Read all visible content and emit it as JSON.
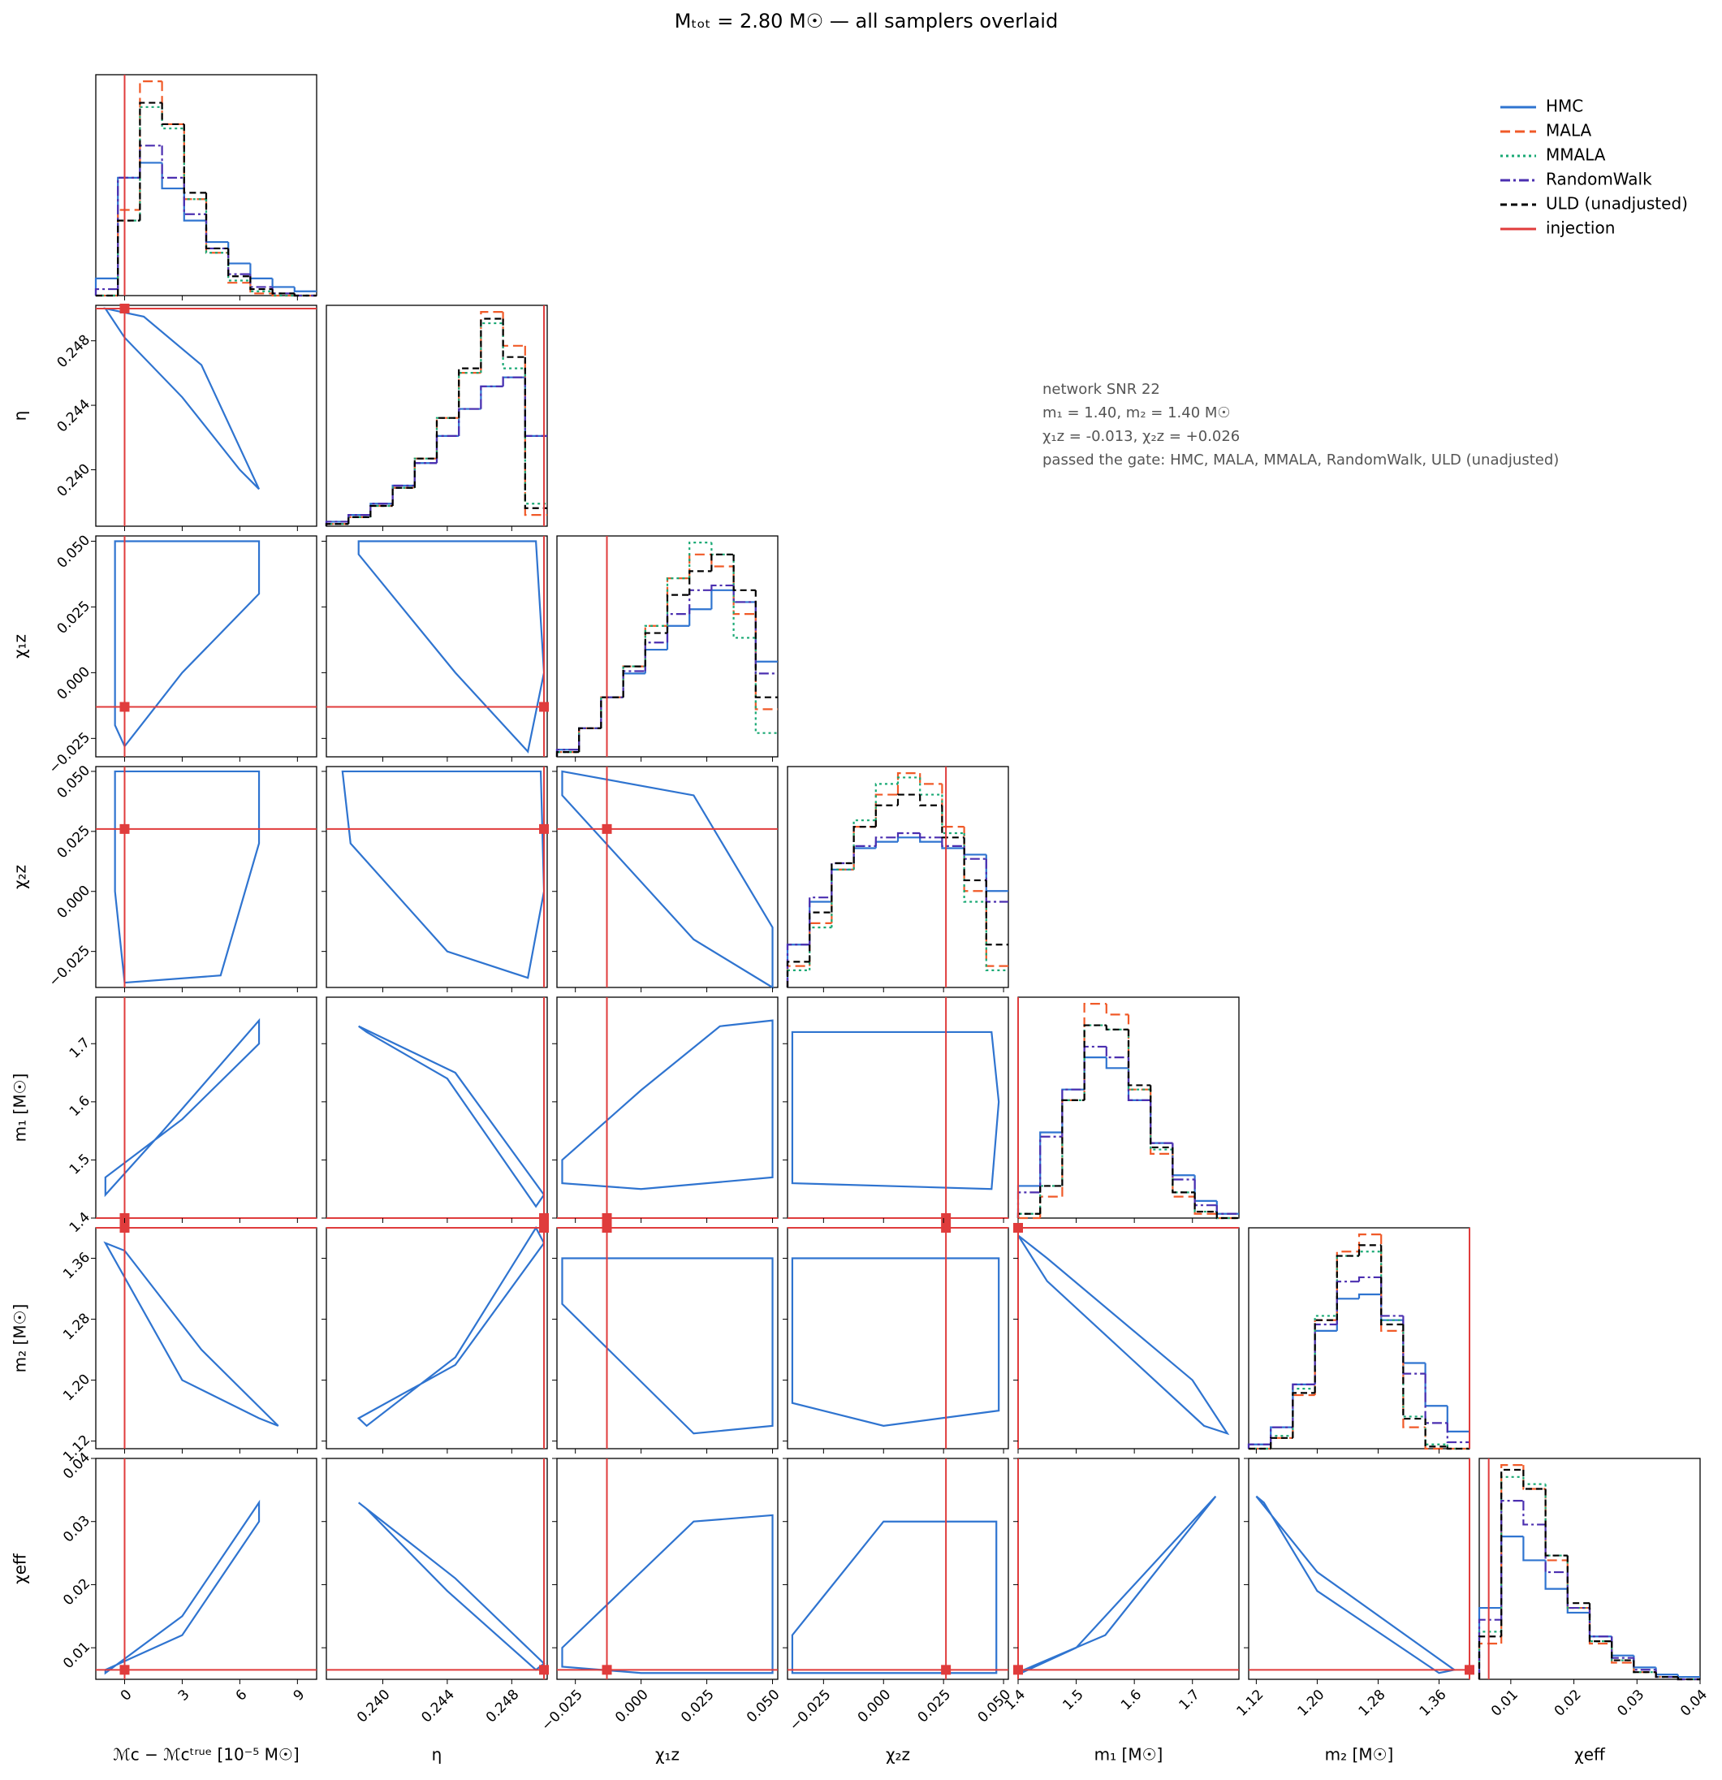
{
  "chart_data": {
    "type": "corner",
    "title": "Mₜₒₜ = 2.80 M☉ — all samplers overlaid",
    "annotations": [
      "network SNR 22",
      "m₁ = 1.40, m₂ = 1.40 M☉",
      "χ₁z = -0.013, χ₂z = +0.026",
      "passed the gate: HMC, MALA, MMALA, RandomWalk, ULD (unadjusted)"
    ],
    "series": [
      {
        "name": "HMC",
        "color": "#2f74d0",
        "dash": "none"
      },
      {
        "name": "MALA",
        "color": "#f05a28",
        "dash": "12 6"
      },
      {
        "name": "MMALA",
        "color": "#19a974",
        "dash": "3 4"
      },
      {
        "name": "RandomWalk",
        "color": "#4b2fb0",
        "dash": "12 4 3 4"
      },
      {
        "name": "ULD (unadjusted)",
        "color": "#000000",
        "dash": "8 5"
      }
    ],
    "injection": {
      "name": "injection",
      "color": "#e03c3c"
    },
    "params": [
      {
        "label": "ℳc − ℳcᵗʳᵘᵉ  [10⁻⁵ M☉]",
        "lim": [
          -1.5,
          10
        ],
        "ticks": [
          0,
          3,
          6,
          9
        ],
        "injection": 0,
        "hist": [
          [
            8,
            55,
            62,
            50,
            35,
            25,
            15,
            8,
            4,
            2
          ],
          [
            0,
            40,
            100,
            80,
            45,
            20,
            6,
            1,
            0,
            0
          ],
          [
            0,
            35,
            88,
            78,
            45,
            20,
            7,
            2,
            0,
            0
          ],
          [
            3,
            55,
            70,
            55,
            38,
            22,
            10,
            4,
            1,
            0
          ],
          [
            0,
            35,
            90,
            80,
            48,
            22,
            9,
            3,
            1,
            0
          ]
        ]
      },
      {
        "label": "η",
        "lim": [
          0.2365,
          0.2502
        ],
        "ticks": [
          {
            "value": 0.24,
            "label": "0.240"
          },
          {
            "value": 0.244,
            "label": "0.244"
          },
          {
            "value": 0.248,
            "label": "0.248"
          }
        ],
        "injection": 0.25,
        "hist": [
          [
            2,
            5,
            10,
            18,
            28,
            40,
            52,
            62,
            66,
            40
          ],
          [
            1,
            4,
            9,
            17,
            30,
            48,
            68,
            95,
            80,
            5
          ],
          [
            1,
            4,
            9,
            17,
            30,
            48,
            68,
            90,
            70,
            10
          ],
          [
            2,
            5,
            10,
            18,
            28,
            40,
            52,
            62,
            66,
            40
          ],
          [
            1,
            4,
            9,
            17,
            30,
            48,
            70,
            92,
            75,
            8
          ]
        ]
      },
      {
        "label": "χ₁z",
        "lim": [
          -0.032,
          0.052
        ],
        "ticks": [
          {
            "value": -0.025,
            "label": "−0.025"
          },
          {
            "value": 0,
            "label": "0.000"
          },
          {
            "value": 0.025,
            "label": "0.025"
          },
          {
            "value": 0.05,
            "label": "0.050"
          }
        ],
        "injection": -0.013,
        "hist": [
          [
            3,
            12,
            25,
            35,
            45,
            55,
            62,
            70,
            65,
            40
          ],
          [
            2,
            12,
            25,
            38,
            55,
            75,
            85,
            80,
            60,
            20
          ],
          [
            2,
            12,
            25,
            38,
            55,
            75,
            90,
            85,
            50,
            10
          ],
          [
            3,
            12,
            25,
            36,
            48,
            60,
            70,
            72,
            65,
            35
          ],
          [
            2,
            12,
            25,
            38,
            52,
            68,
            78,
            85,
            70,
            25
          ]
        ]
      },
      {
        "label": "χ₂z",
        "lim": [
          -0.04,
          0.052
        ],
        "ticks": [
          {
            "value": -0.025,
            "label": "−0.025"
          },
          {
            "value": 0,
            "label": "0.000"
          },
          {
            "value": 0.025,
            "label": "0.025"
          },
          {
            "value": 0.05,
            "label": "0.050"
          }
        ],
        "injection": 0.026,
        "hist": [
          [
            20,
            40,
            55,
            65,
            68,
            70,
            68,
            65,
            62,
            45
          ],
          [
            10,
            30,
            55,
            75,
            90,
            100,
            95,
            75,
            45,
            10
          ],
          [
            8,
            28,
            55,
            78,
            95,
            98,
            90,
            72,
            40,
            8
          ],
          [
            20,
            42,
            58,
            66,
            70,
            72,
            70,
            66,
            60,
            40
          ],
          [
            12,
            35,
            58,
            75,
            85,
            90,
            85,
            70,
            50,
            20
          ]
        ]
      },
      {
        "label": "m₁  [M☉]",
        "lim": [
          1.4,
          1.78
        ],
        "ticks": [
          1.4,
          1.5,
          1.6,
          1.7
        ],
        "injection": 1.4,
        "hist": [
          [
            15,
            40,
            60,
            75,
            70,
            55,
            35,
            20,
            8,
            2
          ],
          [
            0,
            10,
            55,
            100,
            95,
            60,
            30,
            10,
            2,
            0
          ],
          [
            2,
            15,
            55,
            90,
            88,
            60,
            32,
            12,
            3,
            0
          ],
          [
            12,
            38,
            60,
            80,
            75,
            55,
            35,
            18,
            6,
            2
          ],
          [
            2,
            15,
            55,
            90,
            88,
            62,
            33,
            12,
            3,
            0
          ]
        ]
      },
      {
        "label": "m₂  [M☉]",
        "lim": [
          1.11,
          1.4
        ],
        "ticks": [
          1.12,
          {
            "value": 1.2,
            "label": "1.20"
          },
          1.28,
          1.36
        ],
        "injection": 1.4,
        "hist": [
          [
            2,
            10,
            30,
            55,
            70,
            72,
            60,
            40,
            20,
            8
          ],
          [
            0,
            5,
            25,
            60,
            92,
            100,
            55,
            10,
            0,
            0
          ],
          [
            0,
            6,
            28,
            62,
            90,
            92,
            60,
            15,
            2,
            0
          ],
          [
            2,
            10,
            30,
            58,
            78,
            80,
            62,
            35,
            12,
            3
          ],
          [
            0,
            5,
            26,
            60,
            90,
            95,
            58,
            14,
            1,
            0
          ]
        ]
      },
      {
        "label": "χeff",
        "lim": [
          0.005,
          0.04
        ],
        "ticks": [
          0.01,
          0.02,
          0.03,
          0.04
        ],
        "injection": 0.0065,
        "hist": [
          [
            30,
            60,
            50,
            38,
            28,
            18,
            10,
            5,
            2,
            1
          ],
          [
            15,
            90,
            80,
            50,
            30,
            15,
            7,
            3,
            1,
            0
          ],
          [
            20,
            85,
            82,
            52,
            30,
            16,
            8,
            3,
            1,
            0
          ],
          [
            25,
            75,
            65,
            45,
            30,
            18,
            9,
            4,
            1,
            0
          ],
          [
            18,
            88,
            80,
            52,
            32,
            16,
            8,
            3,
            1,
            0
          ]
        ]
      }
    ],
    "contours": [
      {
        "x": [
          -1,
          1,
          4,
          7,
          6,
          3,
          0
        ],
        "y": [
          0.25,
          0.2495,
          0.2465,
          0.2388,
          0.24,
          0.2445,
          0.2482
        ]
      },
      {
        "x": [
          -0.5,
          7,
          7,
          3,
          0,
          -0.5
        ],
        "y": [
          0.05,
          0.05,
          0.03,
          0,
          -0.028,
          -0.02
        ]
      },
      {
        "x": [
          0.2385,
          0.2495,
          0.25,
          0.249,
          0.2445,
          0.2385
        ],
        "y": [
          0.05,
          0.05,
          0,
          -0.03,
          0,
          0.045
        ]
      },
      {
        "x": [
          -0.5,
          7,
          7,
          5,
          0,
          -0.5
        ],
        "y": [
          0.05,
          0.05,
          0.02,
          -0.035,
          -0.038,
          0
        ]
      },
      {
        "x": [
          0.2375,
          0.2498,
          0.25,
          0.249,
          0.244,
          0.238
        ],
        "y": [
          0.05,
          0.05,
          0,
          -0.036,
          -0.025,
          0.02
        ]
      },
      {
        "x": [
          -0.03,
          0.02,
          0.05,
          0.05,
          0.02,
          -0.03
        ],
        "y": [
          0.05,
          0.04,
          -0.015,
          -0.04,
          -0.02,
          0.04
        ]
      },
      {
        "x": [
          -1,
          2,
          7,
          7,
          3,
          -1
        ],
        "y": [
          1.44,
          1.55,
          1.74,
          1.7,
          1.57,
          1.47
        ]
      },
      {
        "x": [
          0.2385,
          0.2445,
          0.25,
          0.2495,
          0.244,
          0.239
        ],
        "y": [
          1.73,
          1.65,
          1.44,
          1.42,
          1.64,
          1.72
        ]
      },
      {
        "x": [
          -0.03,
          0,
          0.03,
          0.05,
          0.05,
          0,
          -0.03
        ],
        "y": [
          1.5,
          1.62,
          1.73,
          1.74,
          1.47,
          1.45,
          1.46
        ]
      },
      {
        "x": [
          -0.038,
          0.045,
          0.048,
          0.045,
          -0.038
        ],
        "y": [
          1.72,
          1.72,
          1.6,
          1.45,
          1.46
        ]
      },
      {
        "x": [
          -1,
          0,
          4,
          8,
          7,
          3
        ],
        "y": [
          1.38,
          1.37,
          1.24,
          1.14,
          1.15,
          1.2
        ]
      },
      {
        "x": [
          0.2385,
          0.2445,
          0.25,
          0.2495,
          0.2445,
          0.239
        ],
        "y": [
          1.15,
          1.22,
          1.38,
          1.4,
          1.23,
          1.14
        ]
      },
      {
        "x": [
          -0.03,
          0.05,
          0.05,
          0.02,
          -0.03
        ],
        "y": [
          1.36,
          1.36,
          1.14,
          1.13,
          1.3
        ]
      },
      {
        "x": [
          -0.038,
          0.048,
          0.048,
          0,
          -0.038
        ],
        "y": [
          1.36,
          1.36,
          1.16,
          1.14,
          1.17
        ]
      },
      {
        "x": [
          1.4,
          1.45,
          1.7,
          1.76,
          1.72,
          1.45
        ],
        "y": [
          1.39,
          1.36,
          1.2,
          1.13,
          1.14,
          1.33
        ]
      },
      {
        "x": [
          -1,
          3,
          7,
          7,
          3,
          -1
        ],
        "y": [
          0.006,
          0.015,
          0.033,
          0.03,
          0.012,
          0.0065
        ]
      },
      {
        "x": [
          0.2385,
          0.2445,
          0.25,
          0.2495,
          0.244,
          0.239
        ],
        "y": [
          0.033,
          0.021,
          0.0075,
          0.0065,
          0.019,
          0.032
        ]
      },
      {
        "x": [
          -0.03,
          0.02,
          0.05,
          0.05,
          0,
          -0.03
        ],
        "y": [
          0.01,
          0.03,
          0.031,
          0.006,
          0.006,
          0.007
        ]
      },
      {
        "x": [
          -0.038,
          0,
          0.047,
          0.047,
          -0.038
        ],
        "y": [
          0.012,
          0.03,
          0.03,
          0.006,
          0.006
        ]
      },
      {
        "x": [
          1.41,
          1.55,
          1.74,
          1.72,
          1.5,
          1.41
        ],
        "y": [
          0.0065,
          0.012,
          0.034,
          0.032,
          0.01,
          0.0062
        ]
      },
      {
        "x": [
          1.12,
          1.2,
          1.38,
          1.36,
          1.2,
          1.13
        ],
        "y": [
          0.034,
          0.022,
          0.0065,
          0.006,
          0.019,
          0.033
        ]
      }
    ]
  }
}
